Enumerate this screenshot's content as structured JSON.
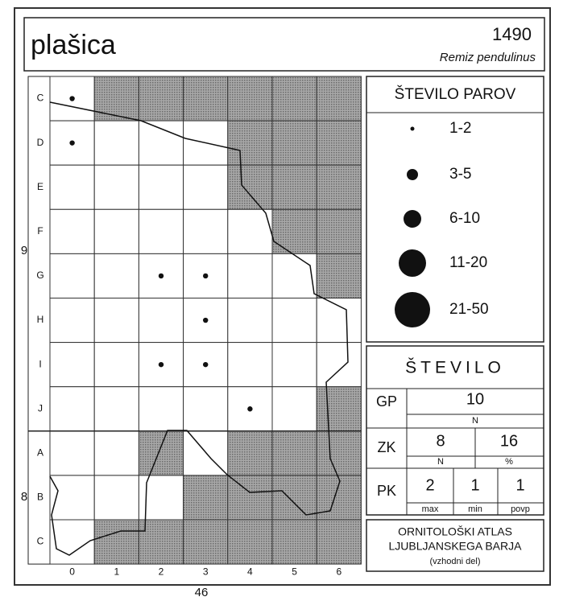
{
  "header": {
    "title": "plašica",
    "number": "1490",
    "latin": "Remiz pendulinus"
  },
  "grid": {
    "rows": [
      "C",
      "D",
      "E",
      "F",
      "G",
      "H",
      "I",
      "J",
      "A",
      "B",
      "C"
    ],
    "columns": [
      "0",
      "1",
      "2",
      "3",
      "4",
      "5",
      "6"
    ],
    "side_labels": [
      "9",
      "8"
    ]
  },
  "legend": {
    "title": "ŠTEVILO PAROV",
    "items": [
      "1-2",
      "3-5",
      "6-10",
      "11-20",
      "21-50"
    ]
  },
  "stats": {
    "title": "ŠTEVILO",
    "gp": {
      "label": "GP",
      "value": "10",
      "unit": "N"
    },
    "zk": {
      "label": "ZK",
      "value": "8",
      "unit": "N",
      "percent": "16",
      "percent_unit": "%"
    },
    "pk": {
      "label": "PK",
      "max": "2",
      "max_label": "max",
      "min": "1",
      "min_label": "min",
      "avg": "1",
      "avg_label": "povp"
    }
  },
  "footer": {
    "line1": "ORNITOLOŠKI ATLAS",
    "line2": "LJUBLJANSKEGA BARJA",
    "line3": "(vzhodni del)"
  },
  "page_number": "46"
}
